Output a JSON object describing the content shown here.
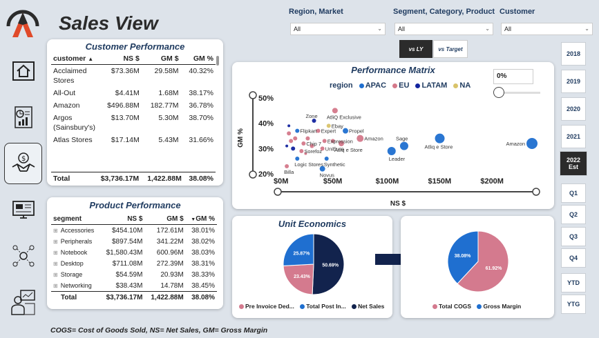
{
  "header": {
    "title": "Sales View",
    "logo": "atliq-logo"
  },
  "nav": [
    {
      "name": "home-icon"
    },
    {
      "name": "finance-report-icon"
    },
    {
      "name": "sales-handshake-icon",
      "active": true
    },
    {
      "name": "marketing-icon"
    },
    {
      "name": "supply-chain-icon"
    },
    {
      "name": "executive-icon"
    }
  ],
  "filters": {
    "region": {
      "label": "Region, Market",
      "value": "All"
    },
    "segment": {
      "label": "Segment, Category, Product",
      "value": "All"
    },
    "customer": {
      "label": "Customer",
      "value": "All"
    }
  },
  "toggle": {
    "ly": "vs LY",
    "target": "vs Target"
  },
  "years": [
    "2018",
    "2019",
    "2020",
    "2021",
    "2022 Est"
  ],
  "quarters": [
    "Q1",
    "Q2",
    "Q3",
    "Q4",
    "YTD",
    "YTG"
  ],
  "customer_perf": {
    "title": "Customer Performance",
    "headers": [
      "customer",
      "NS $",
      "GM $",
      "GM %"
    ],
    "rows": [
      [
        "Acclaimed Stores",
        "$73.36M",
        "29.58M",
        "40.32%"
      ],
      [
        "All-Out",
        "$4.41M",
        "1.68M",
        "38.17%"
      ],
      [
        "Amazon",
        "$496.88M",
        "182.77M",
        "36.78%"
      ],
      [
        "Argos (Sainsbury's)",
        "$13.70M",
        "5.30M",
        "38.70%"
      ],
      [
        "Atlas Stores",
        "$17.14M",
        "5.43M",
        "31.66%"
      ]
    ],
    "total": [
      "Total",
      "$3,736.17M",
      "1,422.88M",
      "38.08%"
    ]
  },
  "product_perf": {
    "title": "Product Performance",
    "headers": [
      "segment",
      "NS $",
      "GM $",
      "GM %"
    ],
    "rows": [
      [
        "Accessories",
        "$454.10M",
        "172.61M",
        "38.01%"
      ],
      [
        "Peripherals",
        "$897.54M",
        "341.22M",
        "38.02%"
      ],
      [
        "Notebook",
        "$1,580.43M",
        "600.96M",
        "38.03%"
      ],
      [
        "Desktop",
        "$711.08M",
        "272.39M",
        "38.31%"
      ],
      [
        "Storage",
        "$54.59M",
        "20.93M",
        "38.33%"
      ],
      [
        "Networking",
        "$38.43M",
        "14.78M",
        "38.45%"
      ]
    ],
    "total": [
      "Total",
      "$3,736.17M",
      "1,422.88M",
      "38.08%"
    ]
  },
  "matrix": {
    "title": "Performance Matrix",
    "slider_value": "0%",
    "legend_title": "region",
    "colors": {
      "APAC": "#1f6fd0",
      "EU": "#d4788a",
      "LATAM": "#12239e",
      "NA": "#d9c36a"
    }
  },
  "chart_data": [
    {
      "type": "scatter",
      "title": "Performance Matrix",
      "xlabel": "NS $",
      "ylabel": "GM %",
      "xlim": [
        0,
        240
      ],
      "ylim": [
        20,
        50
      ],
      "x_ticks": [
        "$0M",
        "$50M",
        "$100M",
        "$150M",
        "$200M"
      ],
      "y_ticks": [
        "50%",
        "40%",
        "30%",
        "20%"
      ],
      "legend": [
        "APAC",
        "EU",
        "LATAM",
        "NA"
      ],
      "points": [
        {
          "label": "Amazon",
          "x": 240,
          "y": 32,
          "r": 8,
          "region": "APAC"
        },
        {
          "label": "Atliq e Store",
          "x": 152,
          "y": 34,
          "r": 7,
          "region": "APAC"
        },
        {
          "label": "Sage",
          "x": 118,
          "y": 31,
          "r": 6,
          "region": "APAC"
        },
        {
          "label": "Leader",
          "x": 106,
          "y": 29,
          "r": 6,
          "region": "APAC"
        },
        {
          "label": "Amazon",
          "x": 76,
          "y": 34,
          "r": 5,
          "region": "EU"
        },
        {
          "label": "Atliq e Store",
          "x": 58,
          "y": 32,
          "r": 4,
          "region": "EU"
        },
        {
          "label": "Propel",
          "x": 62,
          "y": 37,
          "r": 4,
          "region": "APAC"
        },
        {
          "label": "AtliQ Exclusive",
          "x": 52,
          "y": 45,
          "r": 4,
          "region": "EU"
        },
        {
          "label": "Ebay",
          "x": 46,
          "y": 39,
          "r": 3,
          "region": "NA"
        },
        {
          "label": "Zone",
          "x": 32,
          "y": 41,
          "r": 3,
          "region": "LATAM"
        },
        {
          "label": "Expert",
          "x": 36,
          "y": 37,
          "r": 3,
          "region": "EU"
        },
        {
          "label": "Flipkart",
          "x": 16,
          "y": 37,
          "r": 3,
          "region": "APAC"
        },
        {
          "label": "Expression",
          "x": 42,
          "y": 33,
          "r": 3,
          "region": "EU"
        },
        {
          "label": "Chip 7",
          "x": 22,
          "y": 32,
          "r": 3,
          "region": "EU"
        },
        {
          "label": "UniEuro",
          "x": 40,
          "y": 30,
          "r": 3,
          "region": "EU"
        },
        {
          "label": "Sorefoz",
          "x": 20,
          "y": 29,
          "r": 3,
          "region": "EU"
        },
        {
          "label": "Logic Stores",
          "x": 16,
          "y": 26,
          "r": 3,
          "region": "APAC"
        },
        {
          "label": "Synthetic",
          "x": 44,
          "y": 26,
          "r": 3,
          "region": "APAC"
        },
        {
          "label": "Billa",
          "x": 6,
          "y": 23,
          "r": 3,
          "region": "EU"
        },
        {
          "label": "Novus",
          "x": 40,
          "y": 22,
          "r": 4,
          "region": "APAC"
        },
        {
          "label": "",
          "x": 8,
          "y": 36,
          "r": 3,
          "region": "EU"
        },
        {
          "label": "",
          "x": 10,
          "y": 33,
          "r": 3,
          "region": "EU"
        },
        {
          "label": "",
          "x": 12,
          "y": 30,
          "r": 3,
          "region": "LATAM"
        },
        {
          "label": "",
          "x": 26,
          "y": 34,
          "r": 3,
          "region": "EU"
        },
        {
          "label": "",
          "x": 30,
          "y": 31,
          "r": 3,
          "region": "EU"
        },
        {
          "label": "",
          "x": 8,
          "y": 39,
          "r": 2,
          "region": "LATAM"
        },
        {
          "label": "",
          "x": 14,
          "y": 34,
          "r": 3,
          "region": "EU"
        },
        {
          "label": "",
          "x": 50,
          "y": 33,
          "r": 3,
          "region": "EU"
        },
        {
          "label": "",
          "x": 6,
          "y": 31,
          "r": 2,
          "region": "LATAM"
        },
        {
          "label": "",
          "x": 24,
          "y": 28,
          "r": 2,
          "region": "EU"
        }
      ]
    },
    {
      "type": "pie",
      "title": "Unit Economics",
      "slices": [
        {
          "label": "Net Sales",
          "value": 50.69,
          "color": "#12234d"
        },
        {
          "label": "Pre Invoice Ded...",
          "value": 23.43,
          "color": "#d47a8e"
        },
        {
          "label": "Total Post In...",
          "value": 25.87,
          "color": "#1f6fd0"
        }
      ]
    },
    {
      "type": "pie",
      "slices": [
        {
          "label": "Total COGS",
          "value": 61.92,
          "color": "#d47a8e"
        },
        {
          "label": "Gross Margin",
          "value": 38.08,
          "color": "#1f6fd0"
        }
      ]
    }
  ],
  "footnote": "COGS= Cost of Goods Sold, NS= Net Sales, GM= Gross Margin"
}
